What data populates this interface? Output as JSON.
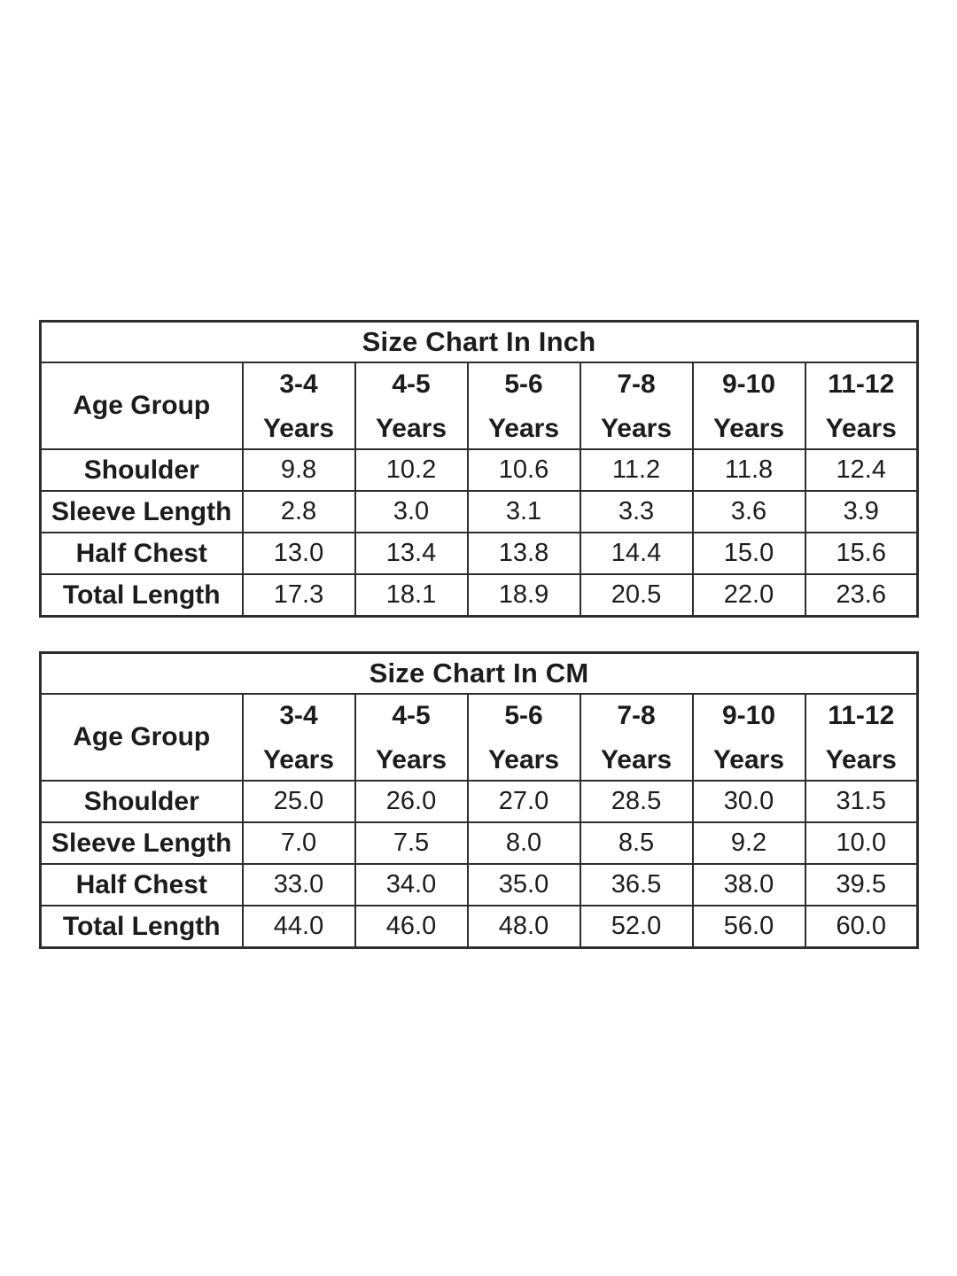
{
  "page": {
    "background_color": "#ffffff",
    "text_color": "#1c1c1c",
    "border_color": "#2e2e2e"
  },
  "tables": [
    {
      "id": "inch",
      "title": "Size Chart In Inch",
      "corner_label": "Age Group",
      "age_columns": [
        {
          "range": "3-4",
          "unit": "Years"
        },
        {
          "range": "4-5",
          "unit": "Years"
        },
        {
          "range": "5-6",
          "unit": "Years"
        },
        {
          "range": "7-8",
          "unit": "Years"
        },
        {
          "range": "9-10",
          "unit": "Years"
        },
        {
          "range": "11-12",
          "unit": "Years"
        }
      ],
      "rows": [
        {
          "label": "Shoulder",
          "values": [
            "9.8",
            "10.2",
            "10.6",
            "11.2",
            "11.8",
            "12.4"
          ]
        },
        {
          "label": "Sleeve Length",
          "values": [
            "2.8",
            "3.0",
            "3.1",
            "3.3",
            "3.6",
            "3.9"
          ]
        },
        {
          "label": "Half Chest",
          "values": [
            "13.0",
            "13.4",
            "13.8",
            "14.4",
            "15.0",
            "15.6"
          ]
        },
        {
          "label": "Total Length",
          "values": [
            "17.3",
            "18.1",
            "18.9",
            "20.5",
            "22.0",
            "23.6"
          ]
        }
      ]
    },
    {
      "id": "cm",
      "title": "Size Chart In CM",
      "corner_label": "Age Group",
      "age_columns": [
        {
          "range": "3-4",
          "unit": "Years"
        },
        {
          "range": "4-5",
          "unit": "Years"
        },
        {
          "range": "5-6",
          "unit": "Years"
        },
        {
          "range": "7-8",
          "unit": "Years"
        },
        {
          "range": "9-10",
          "unit": "Years"
        },
        {
          "range": "11-12",
          "unit": "Years"
        }
      ],
      "rows": [
        {
          "label": "Shoulder",
          "values": [
            "25.0",
            "26.0",
            "27.0",
            "28.5",
            "30.0",
            "31.5"
          ]
        },
        {
          "label": "Sleeve Length",
          "values": [
            "7.0",
            "7.5",
            "8.0",
            "8.5",
            "9.2",
            "10.0"
          ]
        },
        {
          "label": "Half Chest",
          "values": [
            "33.0",
            "34.0",
            "35.0",
            "36.5",
            "38.0",
            "39.5"
          ]
        },
        {
          "label": "Total Length",
          "values": [
            "44.0",
            "46.0",
            "48.0",
            "52.0",
            "56.0",
            "60.0"
          ]
        }
      ]
    }
  ]
}
